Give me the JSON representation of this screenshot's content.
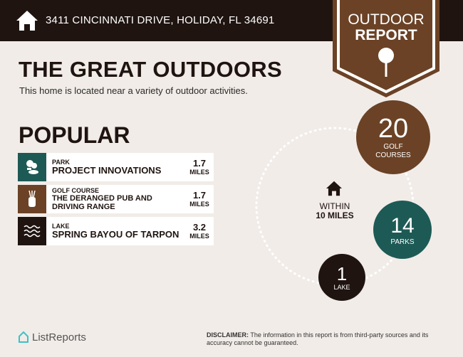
{
  "header": {
    "address": "3411 CINCINNATI DRIVE, HOLIDAY, FL 34691",
    "home_icon": "house-icon"
  },
  "badge": {
    "line1": "OUTDOOR",
    "line2": "REPORT",
    "icon": "tree-icon",
    "color": "#6b4226"
  },
  "title": "THE GREAT OUTDOORS",
  "subtitle": "This home is located near a variety of outdoor activities.",
  "popular": {
    "heading": "POPULAR",
    "items": [
      {
        "category": "PARK",
        "name": "PROJECT INNOVATIONS",
        "distance": "1.7",
        "unit": "MILES",
        "icon": "park-icon",
        "color": "#1d5a55"
      },
      {
        "category": "GOLF COURSE",
        "name": "THE DERANGED PUB AND DRIVING RANGE",
        "distance": "1.7",
        "unit": "MILES",
        "icon": "golf-bag-icon",
        "color": "#6b4226"
      },
      {
        "category": "LAKE",
        "name": "SPRING BAYOU OF TARPON",
        "distance": "3.2",
        "unit": "MILES",
        "icon": "water-icon",
        "color": "#1f1410"
      }
    ]
  },
  "summary": {
    "within": "WITHIN",
    "radius": "10 MILES",
    "counts": [
      {
        "value": "20",
        "label": "GOLF COURSES",
        "color": "#6b4226"
      },
      {
        "value": "14",
        "label": "PARKS",
        "color": "#1d5a55"
      },
      {
        "value": "1",
        "label": "LAKE",
        "color": "#1f1410"
      }
    ]
  },
  "footer": {
    "logo": "ListReports",
    "disclaimer_label": "DISCLAIMER:",
    "disclaimer": " The information in this report is from third-party sources and its accuracy cannot be guaranteed."
  }
}
